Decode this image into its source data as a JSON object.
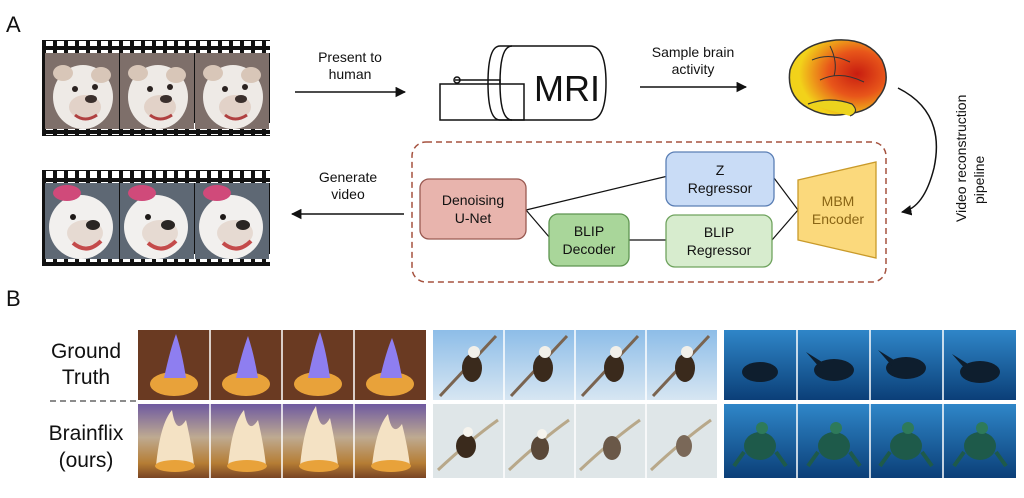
{
  "panels": {
    "a": "A",
    "b": "B"
  },
  "arrows": {
    "present_l1": "Present to",
    "present_l2": "human",
    "sample_l1": "Sample brain",
    "sample_l2": "activity",
    "generate_l1": "Generate",
    "generate_l2": "video",
    "pipeline_l1": "Video reconstruction",
    "pipeline_l2": "pipeline"
  },
  "mri": {
    "label": "MRI"
  },
  "pipeline": {
    "unet_l1": "Denoising",
    "unet_l2": "U-Net",
    "z_l1": "Z",
    "z_l2": "Regressor",
    "bdec_l1": "BLIP",
    "bdec_l2": "Decoder",
    "breg_l1": "BLIP",
    "breg_l2": "Regressor",
    "mbm_l1": "MBM",
    "mbm_l2": "Encoder"
  },
  "rows": {
    "gt_l1": "Ground",
    "gt_l2": "Truth",
    "ours_l1": "Brainflix",
    "ours_l2": "(ours)"
  },
  "colors": {
    "unet_fill": "#e8b4ad",
    "unet_stroke": "#9a5a52",
    "z_fill": "#c9dcf6",
    "z_stroke": "#5b7fb5",
    "bdec_fill": "#a9d69a",
    "bdec_stroke": "#5e9550",
    "breg_fill": "#d7ecce",
    "breg_stroke": "#6fa35e",
    "mbm_fill": "#fbd97c",
    "mbm_stroke": "#c99a2a",
    "dash_stroke": "#a5523f"
  }
}
